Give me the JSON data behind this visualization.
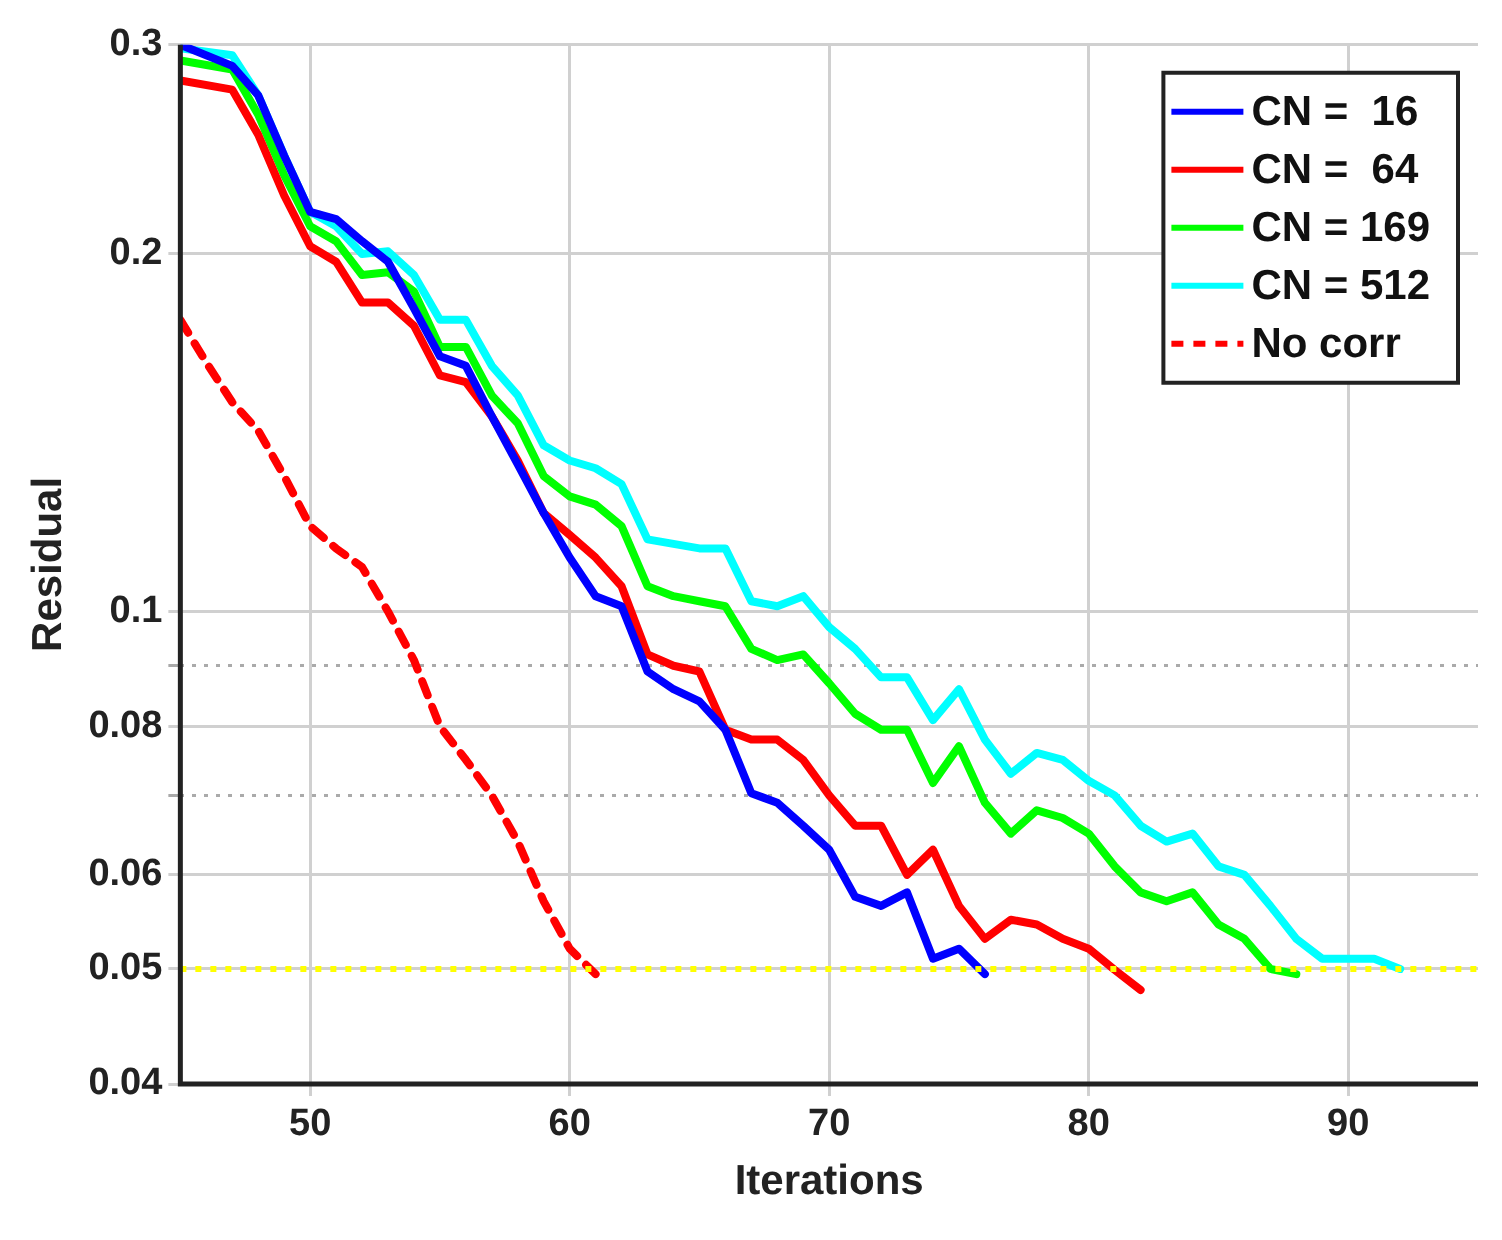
{
  "chart_data": {
    "type": "line",
    "xlabel": "Iterations",
    "ylabel": "Residual",
    "xlim": [
      45,
      95
    ],
    "xticks": [
      50,
      60,
      70,
      80,
      90
    ],
    "ylim": [
      0.04,
      0.3
    ],
    "yticks": [
      0.04,
      0.05,
      0.06,
      {
        "value": 0.07,
        "label": null
      },
      0.08,
      {
        "value": 0.09,
        "label": null
      },
      0.1,
      0.2,
      0.3
    ],
    "log": "y",
    "grid": true,
    "legend": "top right",
    "ref_lines": [
      {
        "axis": "y",
        "value": 0.05,
        "label": null,
        "color": "#ffff00",
        "line_style": "dotted"
      }
    ],
    "series": [
      {
        "name": "CN =  16",
        "color": "#0000ff",
        "line_style": "solid",
        "x": [
          45,
          47,
          48,
          49,
          50,
          51,
          52,
          53,
          54,
          55,
          56,
          57,
          58,
          59,
          60,
          61,
          62,
          63,
          64,
          65,
          66,
          67,
          68,
          69,
          70,
          71,
          72,
          73,
          74,
          75,
          76
        ],
        "values": [
          0.3,
          0.288,
          0.272,
          0.242,
          0.217,
          0.214,
          0.205,
          0.197,
          0.18,
          0.164,
          0.161,
          0.146,
          0.133,
          0.121,
          0.111,
          0.103,
          0.101,
          0.089,
          0.086,
          0.084,
          0.0795,
          0.0703,
          0.069,
          0.066,
          0.063,
          0.0575,
          0.0565,
          0.058,
          0.051,
          0.052,
          0.0495
        ]
      },
      {
        "name": "CN =  64",
        "color": "#ff0000",
        "line_style": "solid",
        "x": [
          45,
          47,
          48,
          49,
          50,
          51,
          52,
          53,
          54,
          55,
          56,
          57,
          58,
          59,
          60,
          61,
          62,
          63,
          64,
          65,
          66,
          67,
          68,
          69,
          70,
          71,
          72,
          73,
          74,
          75,
          76,
          77,
          78,
          79,
          80,
          81,
          82
        ],
        "values": [
          0.28,
          0.275,
          0.252,
          0.224,
          0.203,
          0.197,
          0.182,
          0.182,
          0.174,
          0.158,
          0.156,
          0.146,
          0.134,
          0.121,
          0.116,
          0.111,
          0.105,
          0.092,
          0.09,
          0.089,
          0.0795,
          0.078,
          0.078,
          0.075,
          0.07,
          0.066,
          0.066,
          0.06,
          0.063,
          0.0565,
          0.053,
          0.055,
          0.0545,
          0.053,
          0.052,
          0.0499,
          0.048
        ]
      },
      {
        "name": "CN = 169",
        "color": "#00ff00",
        "line_style": "solid",
        "x": [
          45,
          47,
          48,
          49,
          50,
          51,
          52,
          53,
          54,
          55,
          56,
          57,
          58,
          59,
          60,
          61,
          62,
          63,
          64,
          65,
          66,
          67,
          68,
          69,
          70,
          71,
          72,
          73,
          74,
          75,
          76,
          77,
          78,
          79,
          80,
          81,
          82,
          83,
          84,
          85,
          86,
          87,
          88
        ],
        "values": [
          0.291,
          0.286,
          0.262,
          0.233,
          0.211,
          0.205,
          0.192,
          0.193,
          0.186,
          0.167,
          0.167,
          0.152,
          0.144,
          0.13,
          0.125,
          0.123,
          0.118,
          0.105,
          0.103,
          0.102,
          0.101,
          0.093,
          0.091,
          0.092,
          0.087,
          0.082,
          0.0795,
          0.0795,
          0.0717,
          0.077,
          0.069,
          0.065,
          0.068,
          0.067,
          0.065,
          0.061,
          0.058,
          0.057,
          0.058,
          0.0545,
          0.053,
          0.05,
          0.0495
        ]
      },
      {
        "name": "CN = 512",
        "color": "#00ffff",
        "line_style": "solid",
        "x": [
          45,
          47,
          48,
          49,
          50,
          51,
          52,
          53,
          54,
          55,
          56,
          57,
          58,
          59,
          60,
          61,
          62,
          63,
          64,
          65,
          66,
          67,
          68,
          69,
          70,
          71,
          72,
          73,
          74,
          75,
          76,
          77,
          78,
          79,
          80,
          81,
          82,
          83,
          84,
          85,
          86,
          87,
          88,
          89,
          90,
          91,
          92
        ],
        "values": [
          0.298,
          0.294,
          0.272,
          0.242,
          0.217,
          0.211,
          0.2,
          0.201,
          0.192,
          0.176,
          0.176,
          0.161,
          0.152,
          0.138,
          0.134,
          0.132,
          0.128,
          0.115,
          0.114,
          0.113,
          0.113,
          0.102,
          0.101,
          0.103,
          0.097,
          0.093,
          0.088,
          0.088,
          0.081,
          0.086,
          0.078,
          0.073,
          0.076,
          0.075,
          0.072,
          0.07,
          0.066,
          0.064,
          0.065,
          0.061,
          0.06,
          0.0565,
          0.053,
          0.051,
          0.051,
          0.051,
          0.05
        ]
      },
      {
        "name": "No corr",
        "color": "#ff0000",
        "line_style": "dashed",
        "x": [
          45,
          46,
          47,
          48,
          49,
          50,
          51,
          52,
          53,
          54,
          55,
          56,
          57,
          58,
          59,
          60,
          61
        ],
        "values": [
          0.176,
          0.162,
          0.15,
          0.142,
          0.13,
          0.118,
          0.113,
          0.109,
          0.1,
          0.091,
          0.08,
          0.075,
          0.07,
          0.064,
          0.057,
          0.052,
          0.0495
        ]
      }
    ]
  }
}
